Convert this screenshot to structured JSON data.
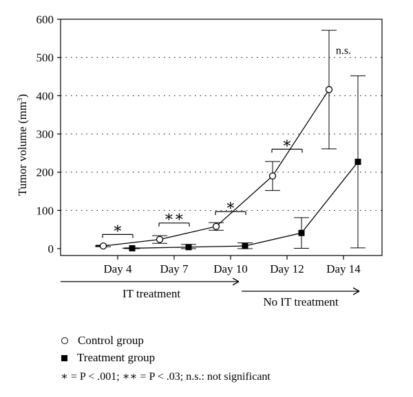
{
  "chart_data": {
    "type": "line",
    "ylabel": "Tumor volume (mm³)",
    "ylabel_parts": {
      "main": "Tumor volume (mm",
      "sup": "3",
      "end": ")"
    },
    "ylim": [
      0,
      600
    ],
    "yticks": [
      0,
      100,
      200,
      300,
      400,
      500,
      600
    ],
    "grid": "dotted horizontal",
    "categories": [
      "Day 4",
      "Day 7",
      "Day 10",
      "Day 12",
      "Day 14"
    ],
    "series": [
      {
        "name": "Control group",
        "marker": "open-circle",
        "values": [
          7,
          24,
          58,
          190,
          416
        ],
        "error": [
          2,
          10,
          10,
          38,
          155
        ]
      },
      {
        "name": "Treatment group",
        "marker": "filled-square",
        "values": [
          1,
          4,
          7,
          41,
          227
        ],
        "error": [
          1,
          7,
          8,
          40,
          225
        ]
      }
    ],
    "significance": [
      {
        "category": "Day 4",
        "label": "*",
        "y": 37
      },
      {
        "category": "Day 7",
        "label": "**",
        "y": 67
      },
      {
        "category": "Day 10",
        "label": "*",
        "y": 97
      },
      {
        "category": "Day 12",
        "label": "*",
        "y": 260
      },
      {
        "category": "Day 14",
        "label": "n.s.",
        "y": 520
      }
    ],
    "phases": [
      {
        "label": "IT treatment",
        "from": "start",
        "to": "Day 10"
      },
      {
        "label": "No IT treatment",
        "from": "Day 10",
        "to": "end"
      }
    ]
  },
  "legend": {
    "control_label": "Control group",
    "treatment_label": "Treatment group"
  },
  "footnote": "∗ = P < .001; ∗∗ = P < .03; n.s.: not significant"
}
